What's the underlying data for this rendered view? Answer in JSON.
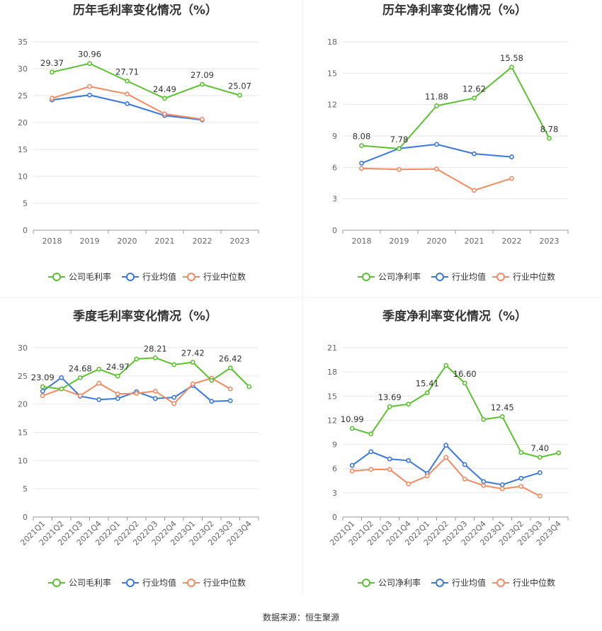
{
  "source_text": "数据来源：恒生聚源",
  "legend_labels": {
    "gross_company": "公司毛利率",
    "net_company": "公司净利率",
    "industry_avg": "行业均值",
    "industry_median": "行业中位数"
  },
  "colors": {
    "company": "#5cc130",
    "industry_avg": "#3b78dc",
    "industry_median": "#f28a62",
    "grid": "#e6e6e6",
    "axis": "#999999"
  },
  "chart_data": [
    {
      "type": "line",
      "title": "历年毛利率变化情况（%）",
      "categories": [
        "2018",
        "2019",
        "2020",
        "2021",
        "2022",
        "2023"
      ],
      "ylim": [
        0,
        35
      ],
      "yticks": [
        0,
        5,
        10,
        15,
        20,
        25,
        30,
        35
      ],
      "series": [
        {
          "name": "公司毛利率",
          "values": [
            29.37,
            30.96,
            27.71,
            24.49,
            27.09,
            25.07
          ],
          "labels": [
            "29.37",
            "30.96",
            "27.71",
            "24.49",
            "27.09",
            "25.07"
          ]
        },
        {
          "name": "行业均值",
          "values": [
            24.2,
            25.1,
            23.5,
            21.3,
            20.5,
            null
          ]
        },
        {
          "name": "行业中位数",
          "values": [
            24.5,
            26.7,
            25.3,
            21.6,
            20.6,
            null
          ]
        }
      ]
    },
    {
      "type": "line",
      "title": "历年净利率变化情况（%）",
      "categories": [
        "2018",
        "2019",
        "2020",
        "2021",
        "2022",
        "2023"
      ],
      "ylim": [
        0,
        18
      ],
      "yticks": [
        0,
        3,
        6,
        9,
        12,
        15,
        18
      ],
      "series": [
        {
          "name": "公司净利率",
          "values": [
            8.08,
            7.78,
            11.88,
            12.62,
            15.58,
            8.78
          ],
          "labels": [
            "8.08",
            "7.78",
            "11.88",
            "12.62",
            "15.58",
            "8.78"
          ]
        },
        {
          "name": "行业均值",
          "values": [
            6.4,
            7.8,
            8.2,
            7.3,
            7.0,
            null
          ]
        },
        {
          "name": "行业中位数",
          "values": [
            5.9,
            5.8,
            5.85,
            3.8,
            4.95,
            null
          ]
        }
      ]
    },
    {
      "type": "line",
      "title": "季度毛利率变化情况（%）",
      "categories": [
        "2021Q1",
        "2021Q2",
        "2021Q3",
        "2021Q4",
        "2022Q1",
        "2022Q2",
        "2022Q3",
        "2022Q4",
        "2023Q1",
        "2023Q2",
        "2023Q3",
        "2023Q4"
      ],
      "ylim": [
        0,
        30
      ],
      "yticks": [
        0,
        5,
        10,
        15,
        20,
        25,
        30
      ],
      "series": [
        {
          "name": "公司毛利率",
          "values": [
            23.09,
            22.7,
            24.68,
            26.2,
            24.97,
            28.0,
            28.21,
            27.0,
            27.42,
            24.2,
            26.42,
            23.1
          ],
          "labels": [
            "23.09",
            null,
            "24.68",
            null,
            "24.97",
            null,
            "28.21",
            null,
            "27.42",
            null,
            "26.42",
            null
          ]
        },
        {
          "name": "行业均值",
          "values": [
            22.3,
            24.7,
            21.4,
            20.8,
            21.0,
            22.2,
            21.0,
            21.2,
            23.3,
            20.5,
            20.6,
            null
          ]
        },
        {
          "name": "行业中位数",
          "values": [
            21.5,
            22.7,
            21.5,
            23.7,
            21.8,
            21.9,
            22.3,
            20.1,
            23.6,
            24.6,
            22.7,
            null
          ]
        }
      ]
    },
    {
      "type": "line",
      "title": "季度净利率变化情况（%）",
      "categories": [
        "2021Q1",
        "2021Q2",
        "2021Q3",
        "2021Q4",
        "2022Q1",
        "2022Q2",
        "2022Q3",
        "2022Q4",
        "2023Q1",
        "2023Q2",
        "2023Q3",
        "2023Q4"
      ],
      "ylim": [
        0,
        21
      ],
      "yticks": [
        0,
        3,
        6,
        9,
        12,
        15,
        18,
        21
      ],
      "series": [
        {
          "name": "公司净利率",
          "values": [
            10.99,
            10.3,
            13.69,
            14.0,
            15.41,
            18.8,
            16.6,
            12.1,
            12.45,
            8.0,
            7.4,
            7.95
          ],
          "labels": [
            "10.99",
            null,
            "13.69",
            null,
            "15.41",
            null,
            "16.60",
            null,
            "12.45",
            null,
            "7.40",
            null
          ]
        },
        {
          "name": "行业均值",
          "values": [
            6.4,
            8.1,
            7.2,
            7.0,
            5.4,
            8.9,
            6.5,
            4.4,
            4.0,
            4.8,
            5.5,
            null
          ]
        },
        {
          "name": "行业中位数",
          "values": [
            5.7,
            5.9,
            5.9,
            4.1,
            5.1,
            7.4,
            4.7,
            3.9,
            3.5,
            3.8,
            2.6,
            null
          ]
        }
      ]
    }
  ]
}
